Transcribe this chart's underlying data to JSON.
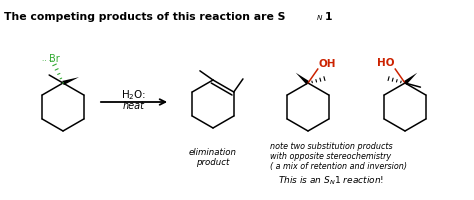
{
  "bg_color": "#ffffff",
  "text_color": "#000000",
  "green_color": "#33aa33",
  "red_color": "#cc2200",
  "title_text": "The competing products of this reaction are S",
  "title_sub": "N",
  "title_suffix": "1",
  "label_elim1": "elimination",
  "label_elim2": "product",
  "label_note1": "note two substitution products",
  "label_note2": "with opposite stereochemistry",
  "label_note3": "( a mix of retention and inversion)",
  "label_bold1": "This is an S",
  "label_bold2": "1 reaction!"
}
